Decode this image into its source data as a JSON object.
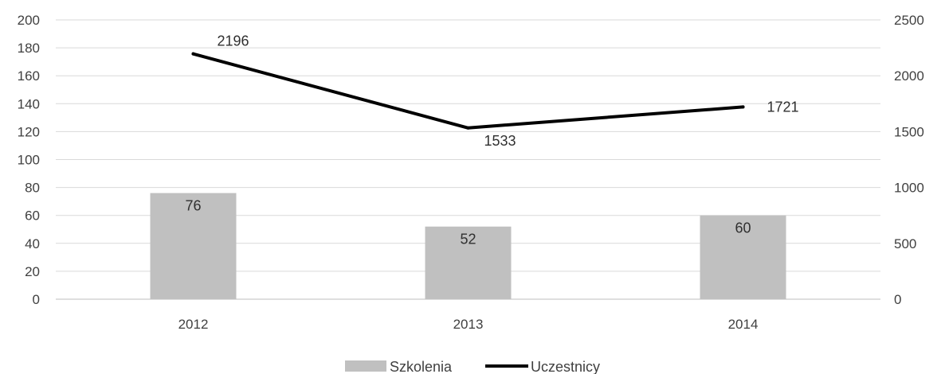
{
  "chart_data": {
    "type": "bar",
    "categories": [
      "2012",
      "2013",
      "2014"
    ],
    "series": [
      {
        "name": "Szkolenia",
        "type": "bar",
        "axis": "left",
        "values": [
          76,
          52,
          60
        ],
        "color": "#c0c0c0"
      },
      {
        "name": "Uczestnicy",
        "type": "line",
        "axis": "right",
        "values": [
          2196,
          1533,
          1721
        ],
        "color": "#000000"
      }
    ],
    "y_left": {
      "min": 0,
      "max": 200,
      "step": 20
    },
    "y_right": {
      "min": 0,
      "max": 2500,
      "step": 500
    },
    "grid": true,
    "legend_position": "bottom",
    "gridline_color": "#d9d9d9"
  }
}
